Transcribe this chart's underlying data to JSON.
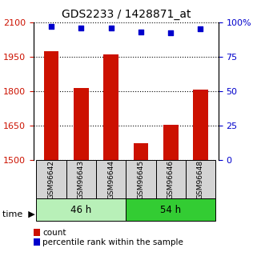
{
  "title": "GDS2233 / 1428871_at",
  "categories": [
    "GSM96642",
    "GSM96643",
    "GSM96644",
    "GSM96645",
    "GSM96646",
    "GSM96648"
  ],
  "count_values": [
    1975,
    1815,
    1960,
    1575,
    1653,
    1808
  ],
  "percentile_values": [
    97,
    96,
    96,
    93,
    92,
    95
  ],
  "groups": [
    {
      "label": "46 h",
      "color": "#b8f0b8",
      "indices": [
        0,
        1,
        2
      ]
    },
    {
      "label": "54 h",
      "color": "#33cc33",
      "indices": [
        3,
        4,
        5
      ]
    }
  ],
  "ylim_left": [
    1500,
    2100
  ],
  "ylim_right": [
    0,
    100
  ],
  "yticks_left": [
    1500,
    1650,
    1800,
    1950,
    2100
  ],
  "yticks_right": [
    0,
    25,
    50,
    75,
    100
  ],
  "ytick_right_labels": [
    "0",
    "25",
    "50",
    "75",
    "100%"
  ],
  "bar_color": "#cc1100",
  "dot_color": "#0000cc",
  "bar_width": 0.5,
  "grid_color": "#000000",
  "bg_color": "#ffffff",
  "xlabel_color": "#cc1100",
  "ylabel_right_color": "#0000cc",
  "time_label": "time",
  "legend_count_label": "count",
  "legend_pct_label": "percentile rank within the sample",
  "base_value": 1500,
  "label_bg": "#d4d4d4"
}
